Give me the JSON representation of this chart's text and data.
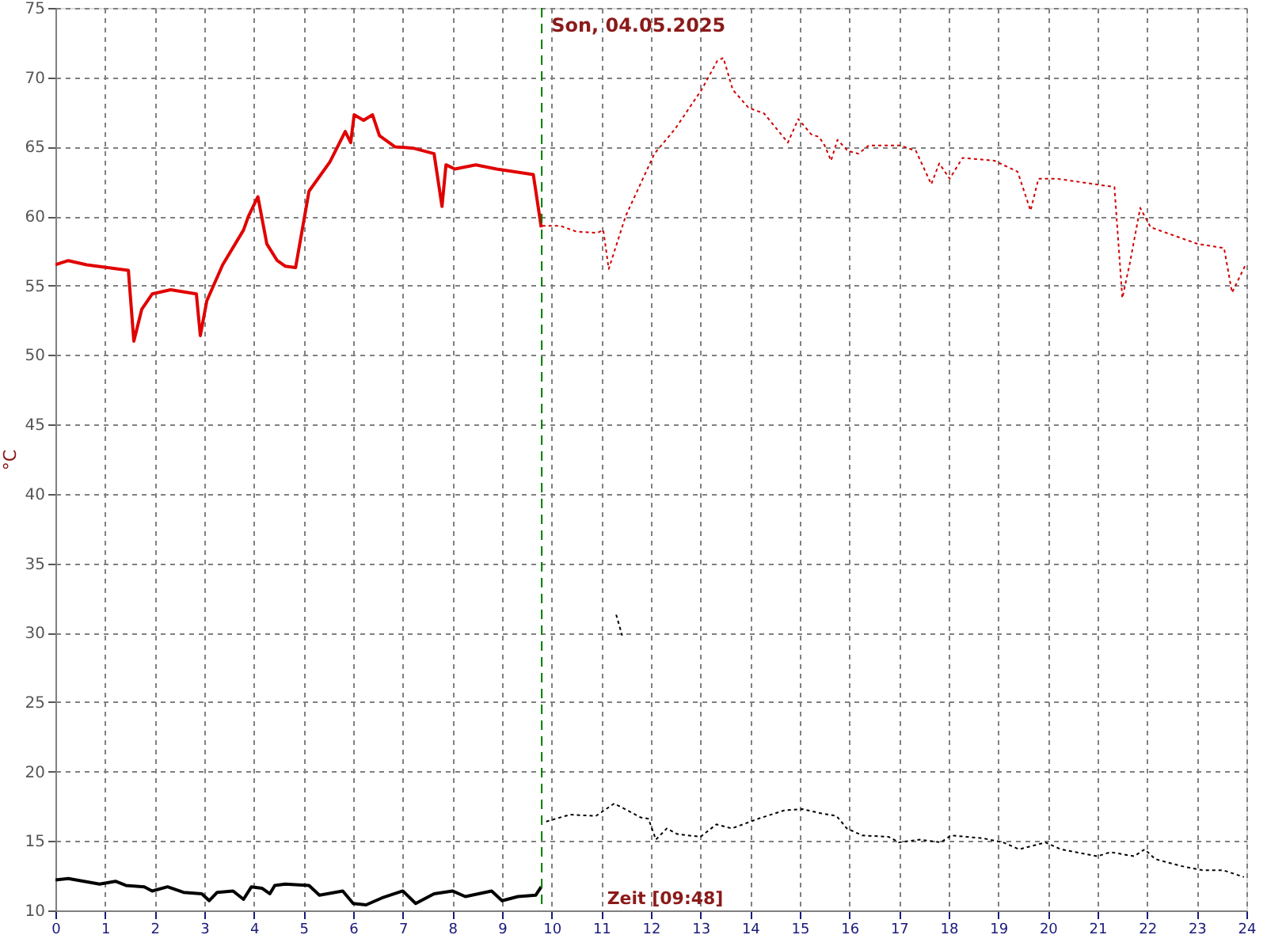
{
  "chart_data": {
    "type": "line",
    "xlabel": "Zeit [09:48]",
    "ylabel": "°C",
    "xlim": [
      0,
      24
    ],
    "xticks": [
      0,
      1,
      2,
      3,
      4,
      5,
      6,
      7,
      8,
      9,
      10,
      11,
      12,
      13,
      14,
      15,
      16,
      17,
      18,
      19,
      20,
      21,
      22,
      23,
      24
    ],
    "ylim": [
      10,
      75
    ],
    "yticks": [
      10,
      15,
      20,
      25,
      30,
      35,
      40,
      45,
      50,
      55,
      60,
      65,
      70,
      75
    ],
    "grid": true,
    "marker": "none",
    "ref_lines": [
      {
        "axis": "x",
        "value": 9.8,
        "label": "Son, 04.05.2025",
        "color": "#007a00",
        "line_style": "dashed"
      }
    ],
    "series": [
      {
        "color": "#e00000",
        "line_style": "solid",
        "x": [
          0,
          0.26,
          0.63,
          1.47,
          1.58,
          1.74,
          1.95,
          2.32,
          2.84,
          2.92,
          3.05,
          3.37,
          3.79,
          3.89,
          4.08,
          4.26,
          4.47,
          4.63,
          4.84,
          5.11,
          5.53,
          5.84,
          5.95,
          6.02,
          6.21,
          6.39,
          6.53,
          6.84,
          7.21,
          7.63,
          7.79,
          7.87,
          8.05,
          8.47,
          8.89,
          9.63,
          9.79
        ],
        "values": [
          56.5,
          56.8,
          56.5,
          56.1,
          51.0,
          53.3,
          54.4,
          54.7,
          54.4,
          51.4,
          53.9,
          56.5,
          59.0,
          60.0,
          61.4,
          58.0,
          56.8,
          56.4,
          56.3,
          61.8,
          63.9,
          66.1,
          65.3,
          67.3,
          66.9,
          67.3,
          65.8,
          65.0,
          64.9,
          64.5,
          60.7,
          63.7,
          63.4,
          63.7,
          63.4,
          63.0,
          59.2
        ]
      },
      {
        "color": "#d00000",
        "line_style": "dotted",
        "x": [
          9.81,
          10.18,
          10.49,
          10.92,
          11.04,
          11.15,
          11.49,
          12.07,
          12.49,
          13.02,
          13.34,
          13.46,
          13.65,
          13.97,
          14.28,
          14.76,
          14.97,
          15.23,
          15.39,
          15.5,
          15.63,
          15.76,
          15.97,
          16.18,
          16.39,
          17.02,
          17.34,
          17.65,
          17.81,
          18.02,
          18.28,
          18.92,
          19.39,
          19.65,
          19.81,
          20.18,
          21.34,
          21.5,
          21.65,
          21.86,
          22.07,
          23.02,
          23.55,
          23.71,
          23.97
        ],
        "values": [
          59.3,
          59.3,
          58.9,
          58.8,
          59.0,
          56.2,
          60.0,
          64.5,
          66.3,
          69.1,
          71.2,
          71.4,
          69.1,
          67.8,
          67.4,
          65.3,
          67.0,
          65.9,
          65.7,
          65.1,
          64.0,
          65.5,
          64.7,
          64.5,
          65.1,
          65.1,
          64.7,
          62.3,
          63.8,
          62.7,
          64.2,
          64.0,
          63.2,
          60.4,
          62.7,
          62.7,
          62.1,
          54.1,
          56.6,
          60.6,
          59.2,
          58.0,
          57.7,
          54.5,
          56.4
        ]
      },
      {
        "color": "#000000",
        "line_style": "solid",
        "x": [
          0,
          0.26,
          0.89,
          1.21,
          1.42,
          1.79,
          1.95,
          2.26,
          2.58,
          2.95,
          3.1,
          3.26,
          3.58,
          3.79,
          3.95,
          4.16,
          4.32,
          4.42,
          4.63,
          5.11,
          5.32,
          5.79,
          6.0,
          6.26,
          6.58,
          7.0,
          7.26,
          7.63,
          8.0,
          8.26,
          8.79,
          9.0,
          9.32,
          9.68,
          9.79
        ],
        "values": [
          12.2,
          12.3,
          11.9,
          12.1,
          11.8,
          11.7,
          11.4,
          11.7,
          11.3,
          11.2,
          10.7,
          11.3,
          11.4,
          10.8,
          11.7,
          11.6,
          11.2,
          11.8,
          11.9,
          11.8,
          11.1,
          11.4,
          10.5,
          10.4,
          10.9,
          11.4,
          10.5,
          11.2,
          11.4,
          11.0,
          11.4,
          10.7,
          11.0,
          11.1,
          11.7
        ]
      },
      {
        "color": "#000000",
        "line_style": "dotted",
        "x": [
          9.89,
          10.37,
          10.89,
          11.26,
          11.53,
          11.79,
          11.95,
          12.1,
          12.32,
          12.53,
          13.0,
          13.32,
          13.63,
          14.16,
          14.68,
          15.05,
          15.42,
          15.74,
          15.95,
          16.26,
          16.79,
          17.0,
          17.42,
          17.84,
          18.05,
          18.68,
          19.1,
          19.42,
          19.95,
          20.26,
          21.0,
          21.26,
          21.74,
          21.95,
          22.16,
          22.68,
          23.11,
          23.53,
          23.95
        ],
        "values": [
          16.4,
          16.9,
          16.8,
          17.7,
          17.2,
          16.7,
          16.6,
          15.1,
          15.9,
          15.5,
          15.3,
          16.2,
          15.9,
          16.6,
          17.2,
          17.3,
          17.0,
          16.8,
          15.9,
          15.4,
          15.3,
          14.9,
          15.1,
          14.9,
          15.4,
          15.2,
          14.9,
          14.4,
          14.9,
          14.4,
          13.9,
          14.2,
          13.9,
          14.4,
          13.7,
          13.2,
          12.9,
          12.9,
          12.4
        ]
      },
      {
        "color": "#000000",
        "line_style": "dotted",
        "x": [
          11.3,
          11.42
        ],
        "values": [
          31.3,
          29.8
        ]
      }
    ]
  }
}
